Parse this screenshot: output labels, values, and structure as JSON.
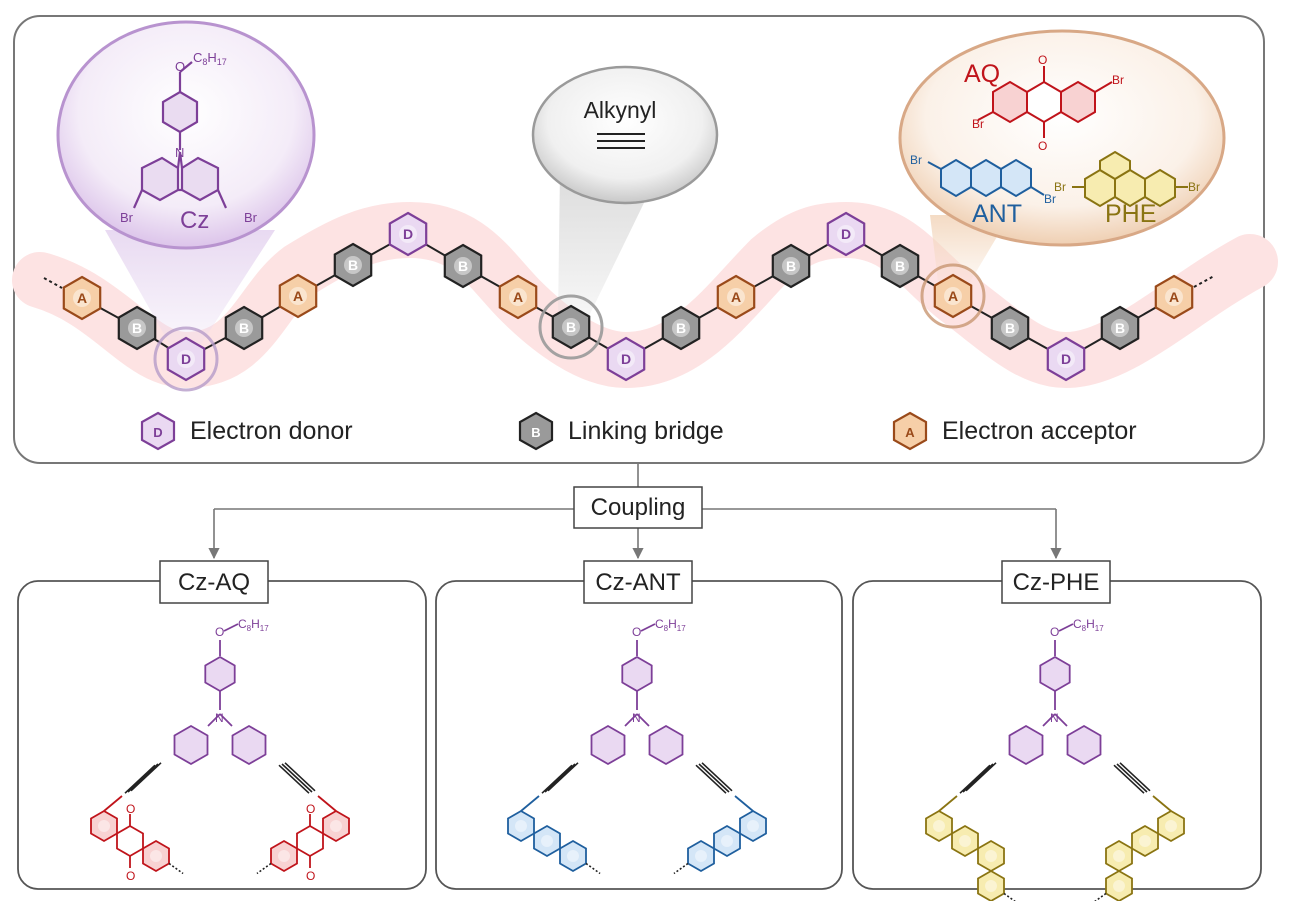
{
  "colors": {
    "donor": "#7d3f98",
    "donor_fill": "#ead9f2",
    "bridge": "#222222",
    "bridge_fill": "#9a9a9a",
    "acceptor": "#9a4a1a",
    "acceptor_fill": "#f6cfa8",
    "aq": "#c0141b",
    "ant": "#1f5f9e",
    "phe": "#8a7412",
    "band": "#fde0e0",
    "frame": "#777777"
  },
  "chain_sequence": [
    "A",
    "B",
    "D",
    "B",
    "A",
    "B",
    "D",
    "B",
    "A",
    "B",
    "D",
    "B",
    "A",
    "B",
    "D",
    "B",
    "A",
    "B",
    "D",
    "B",
    "A"
  ],
  "hex_letters": {
    "donor": "D",
    "bridge": "B",
    "acceptor": "A"
  },
  "bubbles": {
    "cz": {
      "substituent": "O",
      "chain_main": "C",
      "chain_sub1": "8",
      "chain_h": "H",
      "chain_sub2": "17",
      "n_atom": "N",
      "br_left": "Br",
      "br_right": "Br",
      "name": "Cz"
    },
    "alkynyl": {
      "name": "Alkynyl",
      "symbol": "≡"
    },
    "acceptors": {
      "aq": {
        "name": "AQ",
        "br_left": "Br",
        "br_right": "Br",
        "oxygen_top": "O",
        "oxygen_bottom": "O"
      },
      "ant": {
        "name": "ANT",
        "br_left": "Br",
        "br_right": "Br"
      },
      "phe": {
        "name": "PHE",
        "br_left": "Br",
        "br_right": "Br"
      }
    }
  },
  "legend": {
    "donor": "Electron donor",
    "bridge": "Linking bridge",
    "acceptor": "Electron acceptor"
  },
  "coupling_label": "Coupling",
  "products": [
    {
      "name": "Cz-AQ",
      "acceptor": "aq"
    },
    {
      "name": "Cz-ANT",
      "acceptor": "ant"
    },
    {
      "name": "Cz-PHE",
      "acceptor": "phe"
    }
  ],
  "product_molecule": {
    "substituent": "O",
    "chain_main": "C",
    "chain_sub1": "8",
    "chain_h": "H",
    "chain_sub2": "17",
    "n_atom": "N",
    "oxygen": "O"
  }
}
